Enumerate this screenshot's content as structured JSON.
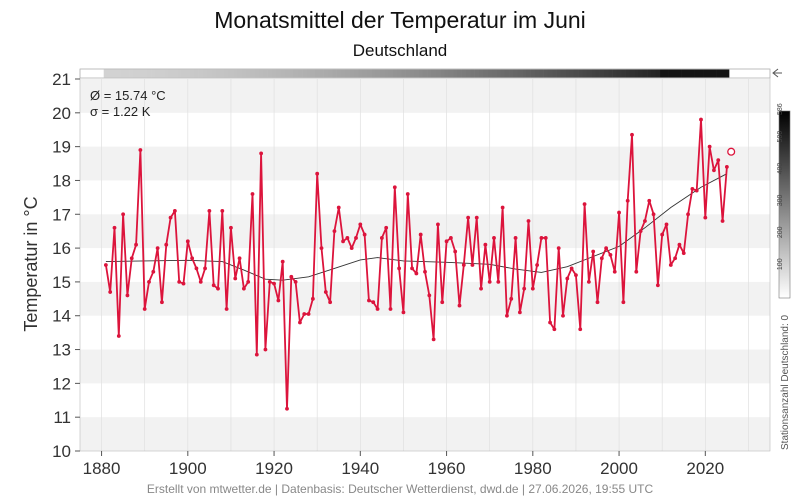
{
  "title": "Monatsmittel der Temperatur im Juni",
  "subtitle": "Deutschland",
  "stats": {
    "mean": "Ø = 15.74 °C",
    "sd": "σ = 1.22 K"
  },
  "footer": "Erstellt von mtwetter.de | Datenbasis: Deutscher Wetterdienst, dwd.de | 27.06.2026, 19:55 UTC",
  "colors": {
    "series": "#dc143c",
    "trend": "#333333",
    "band": "#f2f2f2",
    "grid": "#e0e0e0"
  },
  "colorbar": {
    "label": "Stationsanzahl Deutschland: 0",
    "ticks": [
      "100",
      "200",
      "300",
      "400",
      "500",
      "586"
    ],
    "max": 586
  },
  "chart_data": {
    "type": "line",
    "xlabel": "",
    "ylabel": "Temperatur in °C",
    "xlim": [
      1875,
      2035
    ],
    "ylim": [
      10,
      21
    ],
    "xticks": [
      1880,
      1900,
      1920,
      1940,
      1960,
      1980,
      2000,
      2020
    ],
    "yticks": [
      10,
      11,
      12,
      13,
      14,
      15,
      16,
      17,
      18,
      19,
      20,
      21
    ],
    "grid": true,
    "series": [
      {
        "x": [
          1881,
          1882,
          1883,
          1884,
          1885,
          1886,
          1887,
          1888,
          1889,
          1890,
          1891,
          1892,
          1893,
          1894,
          1895,
          1896,
          1897,
          1898,
          1899,
          1900,
          1901,
          1902,
          1903,
          1904,
          1905,
          1906,
          1907,
          1908,
          1909,
          1910,
          1911,
          1912,
          1913,
          1914,
          1915,
          1916,
          1917,
          1918,
          1919,
          1920,
          1921,
          1922,
          1923,
          1924,
          1925,
          1926,
          1927,
          1928,
          1929,
          1930,
          1931,
          1932,
          1933,
          1934,
          1935,
          1936,
          1937,
          1938,
          1939,
          1940,
          1941,
          1942,
          1943,
          1944,
          1945,
          1946,
          1947,
          1948,
          1949,
          1950,
          1951,
          1952,
          1953,
          1954,
          1955,
          1956,
          1957,
          1958,
          1959,
          1960,
          1961,
          1962,
          1963,
          1964,
          1965,
          1966,
          1967,
          1968,
          1969,
          1970,
          1971,
          1972,
          1973,
          1974,
          1975,
          1976,
          1977,
          1978,
          1979,
          1980,
          1981,
          1982,
          1983,
          1984,
          1985,
          1986,
          1987,
          1988,
          1989,
          1990,
          1991,
          1992,
          1993,
          1994,
          1995,
          1996,
          1997,
          1998,
          1999,
          2000,
          2001,
          2002,
          2003,
          2004,
          2005,
          2006,
          2007,
          2008,
          2009,
          2010,
          2011,
          2012,
          2013,
          2014,
          2015,
          2016,
          2017,
          2018,
          2019,
          2020,
          2021,
          2022,
          2023,
          2024,
          2025
        ],
        "values": [
          15.5,
          14.7,
          16.6,
          13.4,
          17.0,
          14.6,
          15.7,
          16.1,
          18.9,
          14.2,
          15.0,
          15.3,
          16.0,
          14.4,
          16.1,
          16.9,
          17.1,
          15.0,
          14.95,
          16.2,
          15.7,
          15.4,
          15.0,
          15.4,
          17.1,
          14.9,
          14.8,
          17.1,
          14.2,
          16.6,
          15.1,
          15.7,
          14.8,
          15.0,
          17.6,
          12.85,
          18.8,
          13.0,
          15.0,
          14.95,
          14.45,
          15.6,
          11.25,
          15.15,
          15.0,
          13.8,
          14.05,
          14.05,
          14.5,
          18.2,
          16.0,
          14.7,
          14.4,
          16.5,
          17.2,
          16.2,
          16.3,
          16.0,
          16.3,
          16.7,
          16.4,
          14.45,
          14.4,
          14.2,
          16.3,
          16.6,
          14.2,
          17.8,
          15.4,
          14.1,
          17.6,
          15.4,
          15.25,
          16.4,
          15.3,
          14.6,
          13.3,
          16.7,
          14.4,
          16.2,
          16.3,
          15.9,
          14.3,
          15.5,
          16.9,
          15.5,
          16.9,
          14.8,
          16.1,
          15.0,
          16.3,
          15.0,
          17.2,
          14.0,
          14.5,
          16.3,
          14.1,
          14.8,
          16.8,
          14.8,
          15.5,
          16.3,
          16.3,
          13.8,
          13.6,
          16.0,
          14.0,
          15.1,
          15.4,
          15.2,
          13.6,
          17.3,
          15.0,
          15.9,
          14.4,
          15.7,
          16.0,
          15.8,
          15.3,
          17.05,
          14.4,
          17.4,
          19.35,
          15.3,
          16.5,
          16.8,
          17.4,
          17.0,
          14.9,
          16.4,
          16.7,
          15.5,
          15.7,
          16.1,
          15.85,
          17.0,
          17.75,
          17.7,
          19.8,
          16.9,
          19.0,
          18.3,
          18.6,
          16.8,
          18.4
        ]
      }
    ],
    "current": {
      "x": 2026,
      "value": 18.85
    },
    "trend": [
      [
        1881,
        15.6
      ],
      [
        1890,
        15.62
      ],
      [
        1900,
        15.64
      ],
      [
        1908,
        15.6
      ],
      [
        1913,
        15.35
      ],
      [
        1918,
        15.08
      ],
      [
        1922,
        15.05
      ],
      [
        1928,
        15.15
      ],
      [
        1934,
        15.4
      ],
      [
        1940,
        15.65
      ],
      [
        1944,
        15.72
      ],
      [
        1950,
        15.62
      ],
      [
        1960,
        15.58
      ],
      [
        1970,
        15.52
      ],
      [
        1976,
        15.38
      ],
      [
        1982,
        15.28
      ],
      [
        1988,
        15.45
      ],
      [
        1994,
        15.75
      ],
      [
        2000,
        16.05
      ],
      [
        2006,
        16.6
      ],
      [
        2012,
        17.2
      ],
      [
        2019,
        17.8
      ],
      [
        2025,
        18.2
      ]
    ]
  }
}
